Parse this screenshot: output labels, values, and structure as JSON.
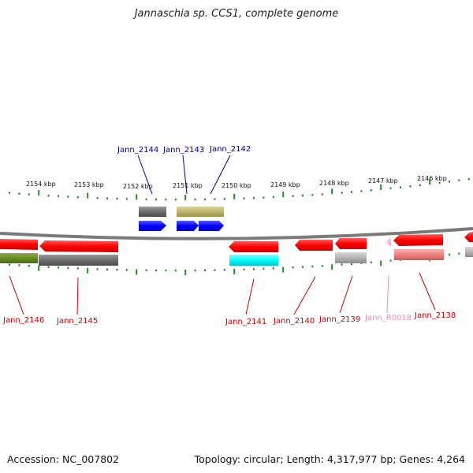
{
  "title": "Jannaschia sp. CCS1, complete genome",
  "footer": {
    "accession": "Accession: NC_007802",
    "summary": "Topology: circular; Length: 4,317,977 bp; Genes: 4,264"
  },
  "ruler_labels": [
    "2154 kbp",
    "2153 kbp",
    "2152 kbp",
    "2151 kbp",
    "2150 kbp",
    "2149 kbp",
    "2148 kbp",
    "2147 kbp",
    "2146 kbp"
  ],
  "top_gene_labels": [
    "Jann_2144",
    "Jann_2143",
    "Jann_2142"
  ],
  "bottom_gene_labels": [
    "Jann_2146",
    "Jann_2145",
    "Jann_2141",
    "Jann_2140",
    "Jann_2139",
    "Jann_R0018",
    "Jann_2138"
  ],
  "colors": {
    "forward_gene": "#0000ff",
    "reverse_gene": "#ff0000",
    "trna_gene": "#ffa0c8",
    "ruler_tick": "#228b22",
    "backbone": "#808080",
    "label_top": "#00008b",
    "label_bottom": "#cc0000",
    "label_trna": "#f08cbe"
  }
}
